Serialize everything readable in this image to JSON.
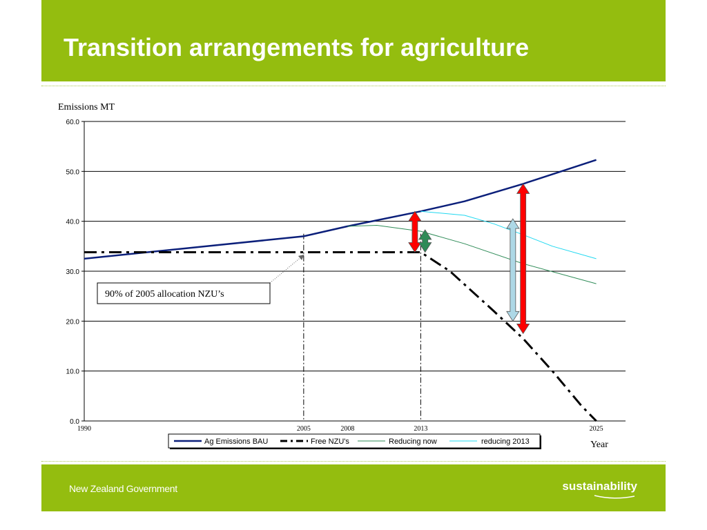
{
  "slide": {
    "title": "Transition arrangements for agriculture",
    "footer_left": "New Zealand Government",
    "footer_right": "sustainability",
    "brand_color": "#94bd0f"
  },
  "chart_data": {
    "type": "line",
    "ylabel": "Emissions MT",
    "xlabel": "Year",
    "xlim": [
      1990,
      2027
    ],
    "ylim": [
      0,
      60
    ],
    "y_ticks": [
      "0.0",
      "10.0",
      "20.0",
      "30.0",
      "40.0",
      "50.0",
      "60.0"
    ],
    "x_ticks": [
      "1990",
      "2005",
      "2008",
      "2013",
      "2025"
    ],
    "grid": true,
    "legend_position": "bottom",
    "annotation": "90% of 2005 allocation NZU’s",
    "series": [
      {
        "name": "Ag Emissions BAU",
        "color": "#0b1f7a",
        "style": "solid-thick",
        "x": [
          1990,
          2005,
          2008,
          2013,
          2016,
          2020,
          2025
        ],
        "y": [
          32.5,
          37.0,
          39.0,
          42.0,
          44.0,
          47.5,
          52.3
        ]
      },
      {
        "name": "Free NZU's",
        "color": "#000000",
        "style": "dash-dot-thick",
        "x": [
          1990,
          2013,
          2015,
          2018,
          2020,
          2022,
          2024,
          2025
        ],
        "y": [
          33.8,
          33.8,
          30.0,
          22.0,
          16.5,
          10.0,
          3.0,
          0.0
        ]
      },
      {
        "name": "Reducing now",
        "color": "#2e8b57",
        "style": "solid-thin",
        "x": [
          2008,
          2010,
          2013,
          2016,
          2020,
          2025
        ],
        "y": [
          39.0,
          39.2,
          38.0,
          35.5,
          31.5,
          27.5
        ]
      },
      {
        "name": "reducing 2013",
        "color": "#1fd8f0",
        "style": "solid-thin",
        "x": [
          2013,
          2016,
          2018,
          2020,
          2022,
          2025
        ],
        "y": [
          42.0,
          41.2,
          39.5,
          37.3,
          35.0,
          32.5
        ]
      }
    ],
    "vertical_markers": [
      2005,
      2013
    ],
    "gap_arrows": [
      {
        "x": 2012.6,
        "from": 33.8,
        "to": 42.0,
        "color": "#ff0000"
      },
      {
        "x": 2013.3,
        "from": 33.8,
        "to": 38.3,
        "color": "#2e8b57"
      },
      {
        "x": 2019.3,
        "from": 20.0,
        "to": 40.5,
        "color": "#add8e6"
      },
      {
        "x": 2020.0,
        "from": 17.5,
        "to": 47.5,
        "color": "#ff0000"
      }
    ]
  }
}
